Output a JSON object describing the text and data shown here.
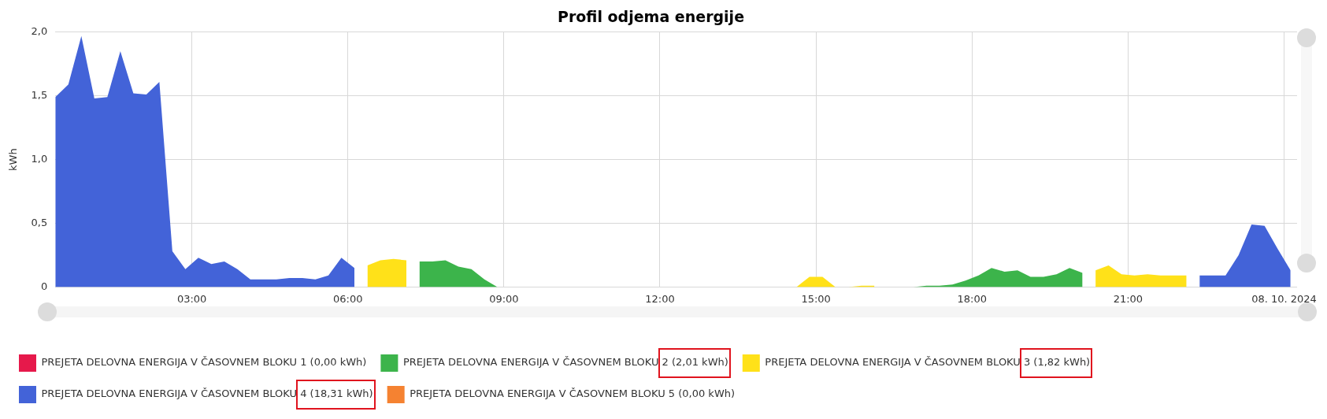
{
  "chart_data": {
    "type": "area",
    "title": "Profil odjema energije",
    "ylabel": "kWh",
    "xlim": [
      0.375,
      24.25
    ],
    "xticks": [
      {
        "value": 3,
        "label": "03:00"
      },
      {
        "value": 6,
        "label": "06:00"
      },
      {
        "value": 9,
        "label": "09:00"
      },
      {
        "value": 12,
        "label": "12:00"
      },
      {
        "value": 15,
        "label": "15:00"
      },
      {
        "value": 18,
        "label": "18:00"
      },
      {
        "value": 21,
        "label": "21:00"
      },
      {
        "value": 24,
        "label": "08. 10. 2024"
      }
    ],
    "ylim": [
      0,
      2
    ],
    "yticks": [
      0,
      {
        "value": 0.5,
        "label": "0,5"
      },
      {
        "value": 1,
        "label": "1,0"
      },
      {
        "value": 1.5,
        "label": "1,5"
      },
      {
        "value": 2,
        "label": "2,0"
      }
    ],
    "grid": true,
    "legend": "bottom",
    "series": [
      {
        "name": "PREJETA DELOVNA ENERGIJA V ČASOVNEM BLOKU 1 (0,00 kWh)",
        "color": "#e6194b"
      },
      {
        "name": "PREJETA DELOVNA ENERGIJA V ČASOVNEM BLOKU 2 (2,01 kWh)",
        "color": "#3cb44b",
        "x": [
          7.375,
          7.625,
          7.875,
          8.125,
          8.375,
          8.625,
          8.875,
          9.125,
          9.375,
          9.625,
          9.875,
          10.125,
          10.375,
          10.625,
          10.875,
          11.125,
          11.375,
          11.625,
          11.875,
          12.125,
          12.375,
          12.625,
          12.875,
          13.125,
          13.375,
          13.625,
          13.875,
          14.125,
          14.375,
          16.375,
          16.625,
          16.875,
          17.125,
          17.375,
          17.625,
          17.875,
          18.125,
          18.375,
          18.625,
          18.875,
          19.125,
          19.375,
          19.625,
          19.875,
          20.125
        ],
        "values": [
          0.2,
          0.2,
          0.21,
          0.16,
          0.14,
          0.06,
          0,
          0,
          0,
          0,
          0,
          0,
          0,
          0,
          0,
          0,
          0,
          0,
          0,
          0,
          0,
          0,
          0,
          0,
          0,
          0,
          0,
          0,
          null,
          0,
          0,
          0,
          0.01,
          0.01,
          0.02,
          0.05,
          0.09,
          0.15,
          0.12,
          0.13,
          0.08,
          0.08,
          0.1,
          0.15,
          0.11
        ]
      },
      {
        "name": "PREJETA DELOVNA ENERGIJA V ČASOVNEM BLOKU 3 (1,82 kWh)",
        "color": "#ffe119",
        "x": [
          6.375,
          6.625,
          6.875,
          7.125,
          7.375,
          14.375,
          14.625,
          14.875,
          15.125,
          15.375,
          15.625,
          15.875,
          16.125,
          16.375,
          20.375,
          20.625,
          20.875,
          21.125,
          21.375,
          21.625,
          21.875,
          22.125
        ],
        "values": [
          0.17,
          0.21,
          0.22,
          0.21,
          null,
          0,
          0,
          0.08,
          0.08,
          0,
          0,
          0.01,
          0.01,
          null,
          0.13,
          0.17,
          0.1,
          0.09,
          0.1,
          0.09,
          0.09,
          0.09
        ]
      },
      {
        "name": "PREJETA DELOVNA ENERGIJA V ČASOVNEM BLOKU 4 (18,31 kWh)",
        "color": "#4363d8",
        "x": [
          0.375,
          0.625,
          0.875,
          1.125,
          1.375,
          1.625,
          1.875,
          2.125,
          2.375,
          2.625,
          2.875,
          3.125,
          3.375,
          3.625,
          3.875,
          4.125,
          4.375,
          4.625,
          4.875,
          5.125,
          5.375,
          5.625,
          5.875,
          6.125,
          6.375,
          22.375,
          22.625,
          22.875,
          23.125,
          23.375,
          23.625,
          23.875,
          24.125
        ],
        "values": [
          1.49,
          1.59,
          1.97,
          1.48,
          1.49,
          1.85,
          1.52,
          1.51,
          1.61,
          0.28,
          0.14,
          0.23,
          0.18,
          0.2,
          0.14,
          0.06,
          0.06,
          0.06,
          0.07,
          0.07,
          0.06,
          0.09,
          0.23,
          0.15,
          null,
          0.09,
          0.09,
          0.09,
          0.25,
          0.49,
          0.48,
          0.3,
          0.13
        ]
      },
      {
        "name": "PREJETA DELOVNA ENERGIJA V ČASOVNEM BLOKU 5 (0,00 kWh)",
        "color": "#f58231"
      }
    ]
  }
}
